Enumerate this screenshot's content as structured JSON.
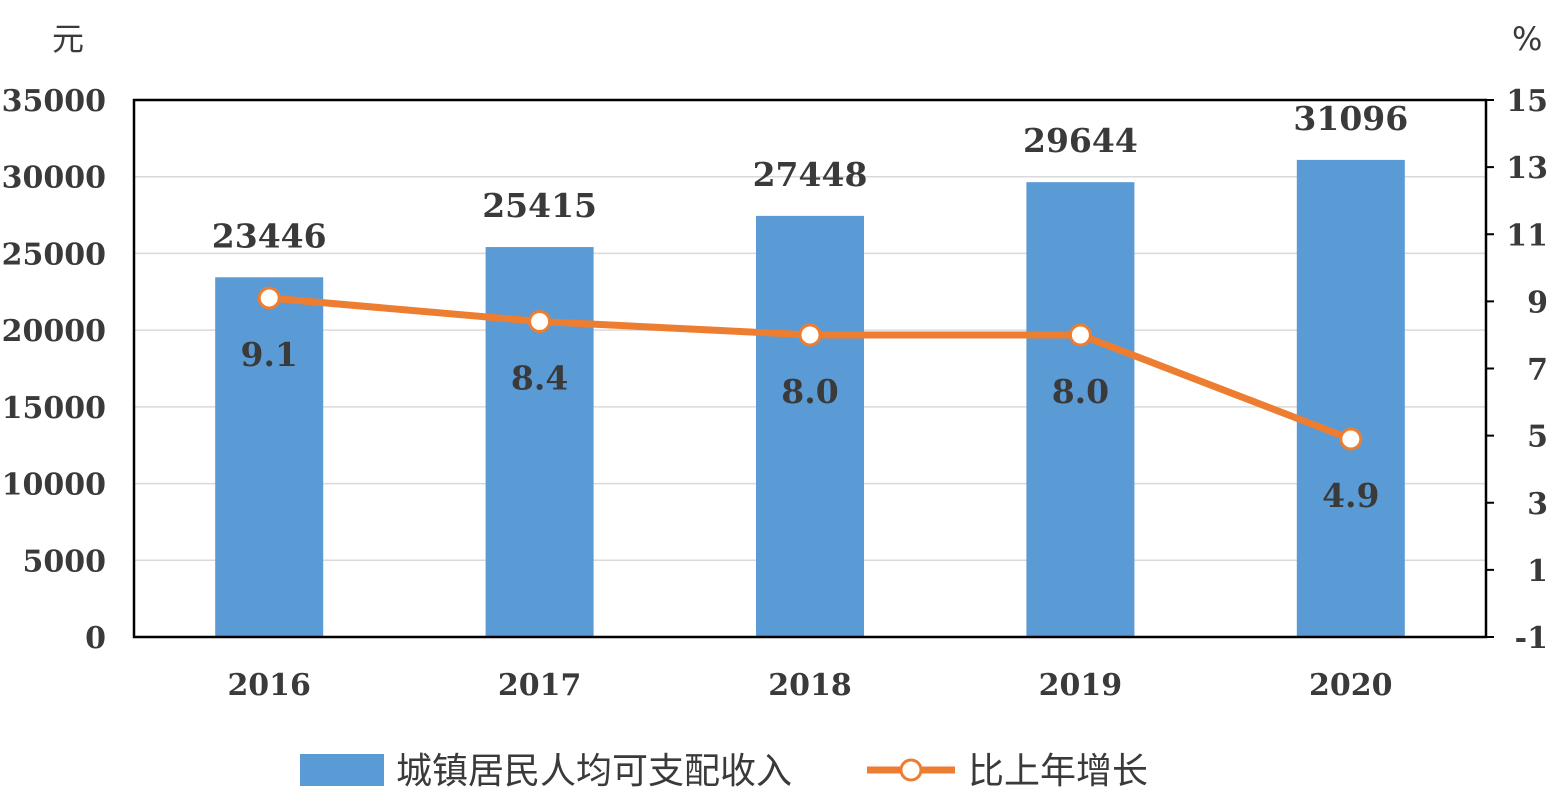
{
  "chart_data": {
    "type": "bar",
    "categories": [
      "2016",
      "2017",
      "2018",
      "2019",
      "2020"
    ],
    "series": [
      {
        "name": "城镇居民人均可支配收入",
        "type": "bar",
        "axis": "left",
        "values": [
          23446,
          25415,
          27448,
          29644,
          31096
        ],
        "labels": [
          "23446",
          "25415",
          "27448",
          "29644",
          "31096"
        ],
        "color": "#5B9BD5"
      },
      {
        "name": "比上年增长",
        "type": "line",
        "axis": "right",
        "values": [
          9.1,
          8.4,
          8.0,
          8.0,
          4.9
        ],
        "labels": [
          "9.1",
          "8.4",
          "8.0",
          "8.0",
          "4.9"
        ],
        "color": "#ED7D31"
      }
    ],
    "y_left": {
      "unit": "元",
      "range": [
        0,
        35000
      ],
      "ticks": [
        "0",
        "5000",
        "10000",
        "15000",
        "20000",
        "25000",
        "30000",
        "35000"
      ]
    },
    "y_right": {
      "unit": "%",
      "range": [
        -1,
        15
      ],
      "ticks": [
        "-1",
        "1",
        "3",
        "5",
        "7",
        "9",
        "11",
        "13",
        "15"
      ]
    },
    "grid": true,
    "legend": "bottom"
  }
}
